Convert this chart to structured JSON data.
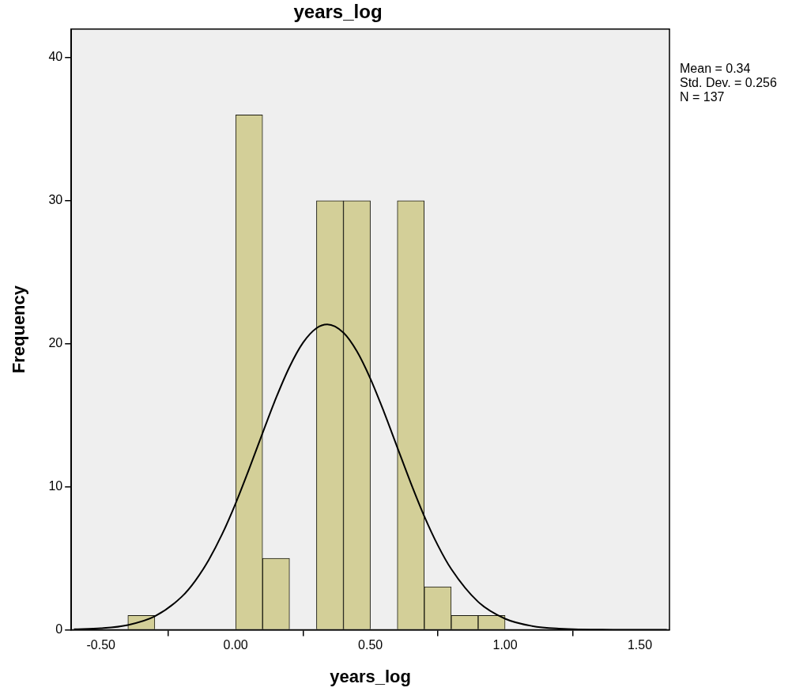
{
  "chart_data": {
    "type": "histogram",
    "title": "years_log",
    "xlabel": "years_log",
    "ylabel": "Frequency",
    "bins": [
      -0.4,
      -0.3,
      -0.2,
      -0.1,
      0.0,
      0.1,
      0.2,
      0.3,
      0.4,
      0.5,
      0.6,
      0.7,
      0.8,
      0.9,
      1.0
    ],
    "values": [
      1,
      0,
      0,
      0,
      36,
      5,
      0,
      30,
      30,
      0,
      30,
      3,
      1,
      1
    ],
    "color": "#d3cf98",
    "series": [
      {
        "type": "line",
        "color": "#000000",
        "x": [
          -0.6,
          -0.5,
          -0.4,
          -0.3,
          -0.2,
          -0.15,
          -0.1,
          -0.05,
          0.0,
          0.05,
          0.1,
          0.15,
          0.2,
          0.25,
          0.3,
          0.34,
          0.4,
          0.45,
          0.5,
          0.55,
          0.6,
          0.65,
          0.7,
          0.75,
          0.8,
          0.9,
          1.0,
          1.1,
          1.2,
          1.4,
          1.6
        ],
        "values": [
          0.03,
          0.1,
          0.33,
          0.94,
          2.31,
          3.42,
          4.88,
          6.69,
          8.84,
          11.24,
          13.76,
          16.21,
          18.38,
          20.07,
          21.09,
          21.35,
          20.77,
          19.47,
          17.56,
          15.25,
          12.75,
          10.26,
          7.94,
          5.92,
          4.25,
          1.95,
          0.77,
          0.26,
          0.08,
          0.0,
          0.0
        ]
      }
    ],
    "xlim": [
      -0.61,
      1.61
    ],
    "xticks": [
      {
        "value": -0.5,
        "label": "-0.50"
      },
      {
        "value": 0,
        "label": "0.00"
      },
      {
        "value": 0.5,
        "label": "0.50"
      },
      {
        "value": 1,
        "label": "1.00"
      },
      {
        "value": 1.5,
        "label": "1.50"
      }
    ],
    "ylim": [
      0,
      42
    ],
    "yticks": [
      0,
      10,
      20,
      30,
      40
    ],
    "grid": false,
    "legend": false,
    "marker": "none",
    "annotations": [
      "Mean = 0.34",
      "Std. Dev. = 0.256",
      "N = 137"
    ]
  }
}
